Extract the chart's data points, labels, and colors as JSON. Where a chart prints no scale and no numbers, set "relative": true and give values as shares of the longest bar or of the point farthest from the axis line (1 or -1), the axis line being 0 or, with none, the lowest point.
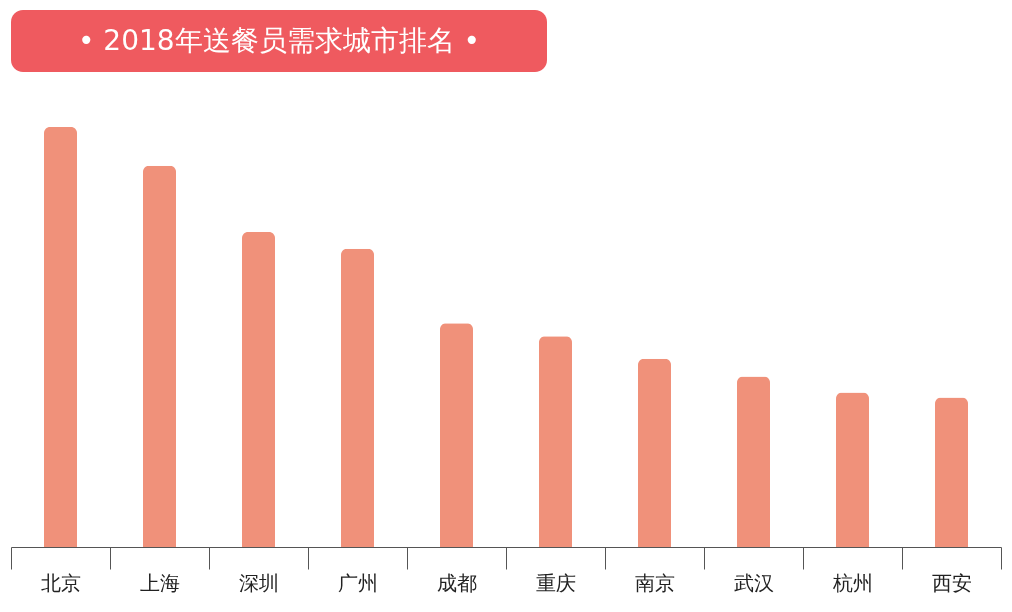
{
  "chart_data": {
    "type": "bar",
    "title": "• 2018年送餐员需求城市排名 •",
    "categories": [
      "北京",
      "上海",
      "深圳",
      "广州",
      "成都",
      "重庆",
      "南京",
      "武汉",
      "杭州",
      "西安"
    ],
    "values": [
      1,
      0.908,
      0.75,
      0.71,
      0.533,
      0.502,
      0.448,
      0.406,
      0.368,
      0.356
    ],
    "color": "#f0917a",
    "relative": true,
    "grid": false
  }
}
